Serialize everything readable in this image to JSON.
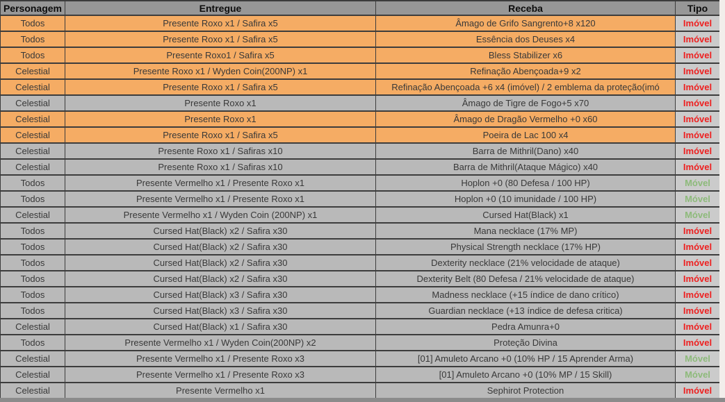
{
  "table": {
    "headers": {
      "personagem": "Personagem",
      "entregue": "Entregue",
      "receba": "Receba",
      "tipo": "Tipo"
    },
    "rows": [
      {
        "personagem": "Todos",
        "entregue": "Presente Roxo x1 / Safira x5",
        "receba": "Âmago de Grifo Sangrento+8 x120",
        "tipo": "Imóvel",
        "highlight": true
      },
      {
        "personagem": "Todos",
        "entregue": "Presente Roxo x1 / Safira x5",
        "receba": "Essência dos Deuses x4",
        "tipo": "Imóvel",
        "highlight": true
      },
      {
        "personagem": "Todos",
        "entregue": "Presente Roxo1 / Safira x5",
        "receba": "Bless Stabilizer x6",
        "tipo": "Imóvel",
        "highlight": true
      },
      {
        "personagem": "Celestial",
        "entregue": "Presente Roxo x1 / Wyden Coin(200NP) x1",
        "receba": "Refinação Abençoada+9 x2",
        "tipo": "Imóvel",
        "highlight": true
      },
      {
        "personagem": "Celestial",
        "entregue": "Presente Roxo x1 / Safira x5",
        "receba": "Refinação Abençoada +6 x4 (imóvel) / 2 emblema da proteção(imó",
        "tipo": "Imóvel",
        "highlight": true
      },
      {
        "personagem": "Celestial",
        "entregue": "Presente Roxo x1",
        "receba": "Âmago de Tigre de Fogo+5 x70",
        "tipo": "Imóvel",
        "highlight": false
      },
      {
        "personagem": "Celestial",
        "entregue": "Presente Roxo x1",
        "receba": "Âmago de Dragão Vermelho +0 x60",
        "tipo": "Imóvel",
        "highlight": true
      },
      {
        "personagem": "Celestial",
        "entregue": "Presente Roxo x1 / Safira x5",
        "receba": "Poeira de Lac 100 x4",
        "tipo": "Imóvel",
        "highlight": true
      },
      {
        "personagem": "Celestial",
        "entregue": "Presente Roxo x1 / Safiras x10",
        "receba": "Barra de Mithril(Dano) x40",
        "tipo": "Imóvel",
        "highlight": false
      },
      {
        "personagem": "Celestial",
        "entregue": "Presente Roxo x1 / Safiras x10",
        "receba": "Barra de Mithril(Ataque Mágico) x40",
        "tipo": "Imóvel",
        "highlight": false
      },
      {
        "personagem": "Todos",
        "entregue": "Presente Vermelho x1 / Presente Roxo x1",
        "receba": "Hoplon +0 (80 Defesa / 100 HP)",
        "tipo": "Móvel",
        "highlight": false
      },
      {
        "personagem": "Todos",
        "entregue": "Presente Vermelho x1 / Presente Roxo x1",
        "receba": "Hoplon +0 (10 imunidade / 100 HP)",
        "tipo": "Móvel",
        "highlight": false
      },
      {
        "personagem": "Celestial",
        "entregue": "Presente Vermelho x1 / Wyden Coin (200NP) x1",
        "receba": "Cursed Hat(Black) x1",
        "tipo": "Móvel",
        "highlight": false
      },
      {
        "personagem": "Todos",
        "entregue": "Cursed Hat(Black) x2 / Safira x30",
        "receba": "Mana necklace (17% MP)",
        "tipo": "Imóvel",
        "highlight": false
      },
      {
        "personagem": "Todos",
        "entregue": "Cursed Hat(Black) x2 / Safira x30",
        "receba": "Physical Strength necklace (17% HP)",
        "tipo": "Imóvel",
        "highlight": false
      },
      {
        "personagem": "Todos",
        "entregue": "Cursed Hat(Black) x2 / Safira x30",
        "receba": "Dexterity necklace (21% velocidade de ataque)",
        "tipo": "Imóvel",
        "highlight": false
      },
      {
        "personagem": "Todos",
        "entregue": "Cursed Hat(Black) x2 / Safira x30",
        "receba": "Dexterity Belt (80 Defesa / 21% velocidade de ataque)",
        "tipo": "Imóvel",
        "highlight": false
      },
      {
        "personagem": "Todos",
        "entregue": "Cursed Hat(Black) x3 / Safira x30",
        "receba": "Madness necklace (+15 índice de dano crítico)",
        "tipo": "Imóvel",
        "highlight": false
      },
      {
        "personagem": "Todos",
        "entregue": "Cursed Hat(Black) x3 / Safira x30",
        "receba": "Guardian necklace (+13 índice de defesa critica)",
        "tipo": "Imóvel",
        "highlight": false
      },
      {
        "personagem": "Celestial",
        "entregue": "Cursed Hat(Black) x1 / Safira x30",
        "receba": "Pedra Amunra+0",
        "tipo": "Imóvel",
        "highlight": false
      },
      {
        "personagem": "Todos",
        "entregue": "Presente Vermelho x1 / Wyden Coin(200NP) x2",
        "receba": "Proteção Divina",
        "tipo": "Imóvel",
        "highlight": false
      },
      {
        "personagem": "Celestial",
        "entregue": "Presente Vermelho x1 / Presente Roxo x3",
        "receba": "[01] Amuleto Arcano +0 (10% HP / 15 Aprender Arma)",
        "tipo": "Móvel",
        "highlight": false
      },
      {
        "personagem": "Celestial",
        "entregue": "Presente Vermelho x1 / Presente Roxo x3",
        "receba": "[01] Amuleto Arcano +0 (10% MP / 15 Skill)",
        "tipo": "Móvel",
        "highlight": false
      },
      {
        "personagem": "Celestial",
        "entregue": "Presente Vermelho x1",
        "receba": "Sephirot Protection",
        "tipo": "Imóvel",
        "highlight": false
      }
    ]
  },
  "colors": {
    "highlight-orange": "#f5ac64",
    "row-gray": "#b9b9b9",
    "tipo-gray": "#cbcbcb",
    "header-gray": "#979797",
    "imovel-red": "#ee2020",
    "movel-green": "#8dba7a",
    "strip-color": "#f2eeeb",
    "bottom-gray": "#8b8b8b"
  }
}
